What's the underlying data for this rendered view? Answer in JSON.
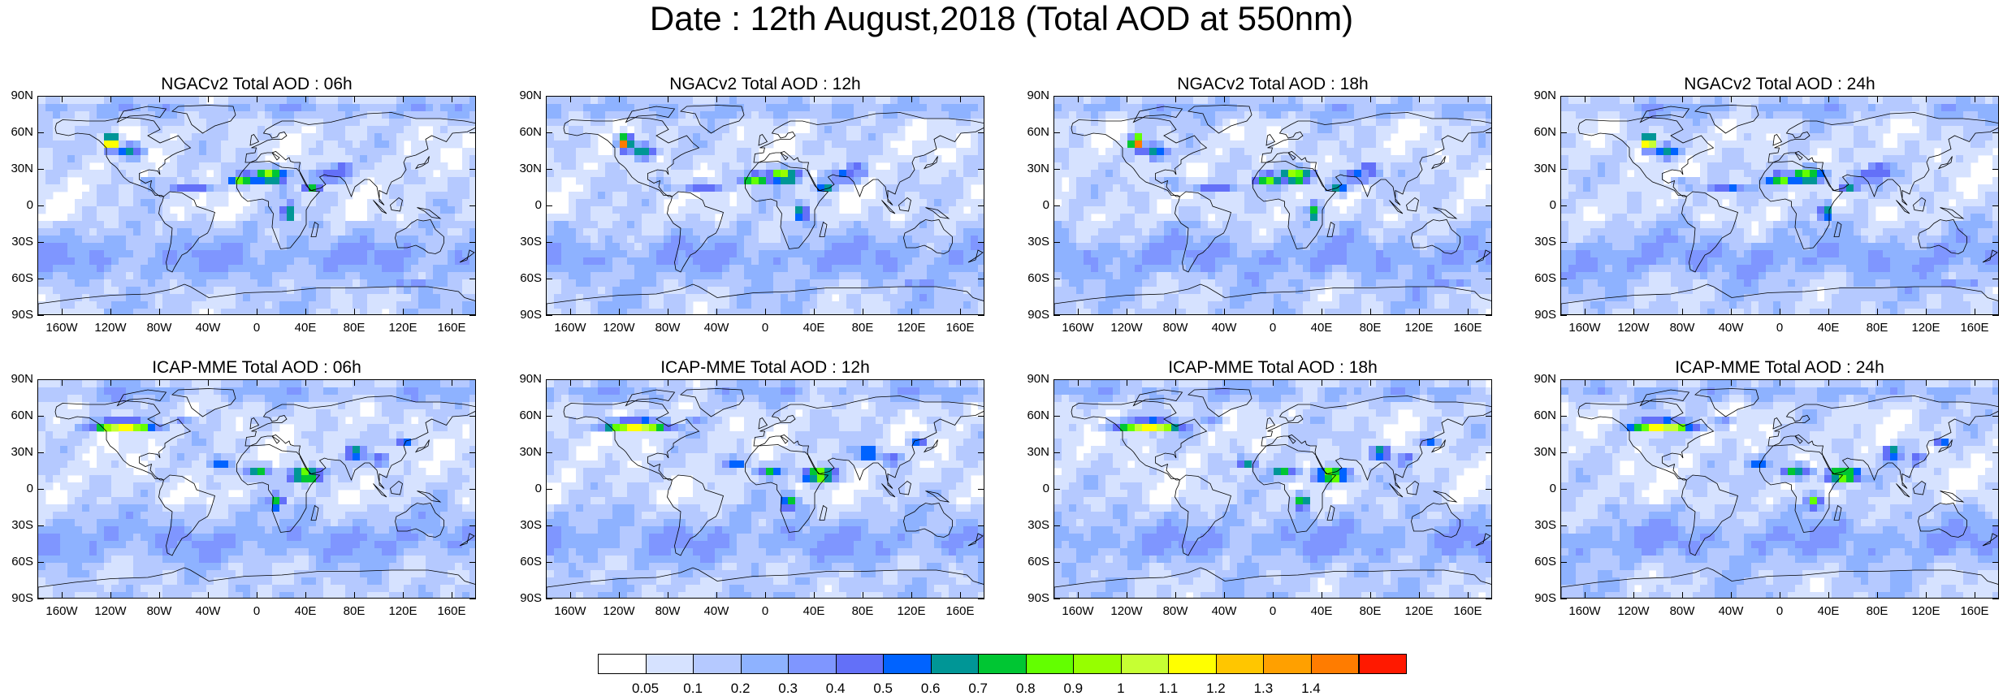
{
  "title": "Date : 12th August,2018 (Total AOD at 550nm)",
  "lat_labels": [
    "90N",
    "60N",
    "30N",
    "0",
    "30S",
    "60S",
    "90S"
  ],
  "lon_labels": [
    "160W",
    "120W",
    "80W",
    "40W",
    "0",
    "40E",
    "80E",
    "120E",
    "160E"
  ],
  "panels": [
    {
      "title": "NGACv2 Total AOD : 06h",
      "model": "NGACv2",
      "hour": "06h"
    },
    {
      "title": "NGACv2 Total AOD : 12h",
      "model": "NGACv2",
      "hour": "12h"
    },
    {
      "title": "NGACv2 Total AOD : 18h",
      "model": "NGACv2",
      "hour": "18h"
    },
    {
      "title": "NGACv2 Total AOD : 24h",
      "model": "NGACv2",
      "hour": "24h"
    },
    {
      "title": "ICAP-MME Total AOD : 06h",
      "model": "ICAP-MME",
      "hour": "06h"
    },
    {
      "title": "ICAP-MME Total AOD : 12h",
      "model": "ICAP-MME",
      "hour": "12h"
    },
    {
      "title": "ICAP-MME Total AOD : 18h",
      "model": "ICAP-MME",
      "hour": "18h"
    },
    {
      "title": "ICAP-MME Total AOD : 24h",
      "model": "ICAP-MME",
      "hour": "24h"
    }
  ],
  "colorbar": {
    "labels": [
      "0.05",
      "0.1",
      "0.2",
      "0.3",
      "0.4",
      "0.5",
      "0.6",
      "0.7",
      "0.8",
      "0.9",
      "1",
      "1.1",
      "1.2",
      "1.3",
      "1.4"
    ],
    "colors": [
      "#ffffff",
      "#d6e2ff",
      "#b5c9ff",
      "#8eb2ff",
      "#7f96ff",
      "#6370f8",
      "#0063ff",
      "#009696",
      "#00c633",
      "#63ff00",
      "#96ff00",
      "#c6ff33",
      "#ffff00",
      "#ffc600",
      "#ffa000",
      "#ff7c00",
      "#ff1900"
    ]
  }
}
